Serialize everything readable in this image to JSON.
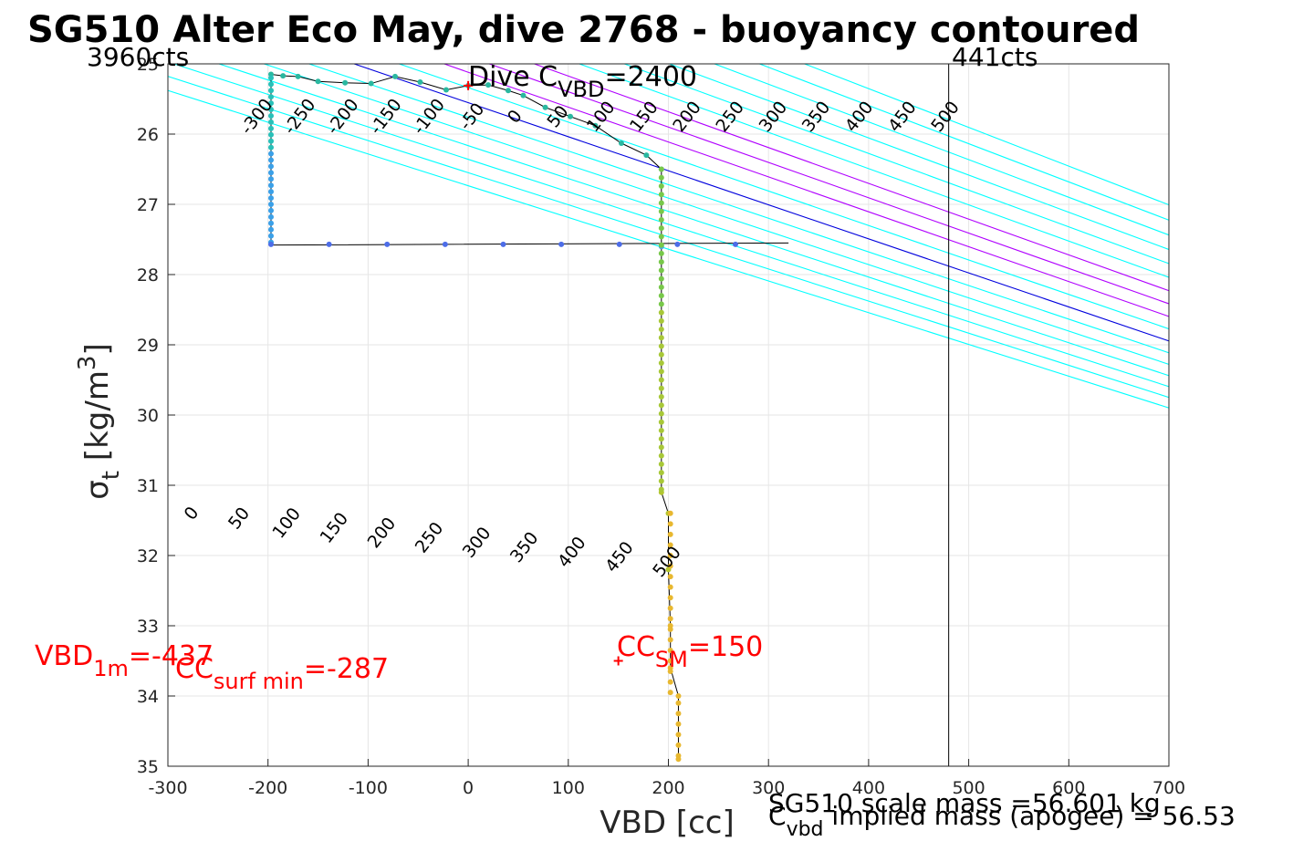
{
  "chart_data": {
    "type": "scatter",
    "title": "SG510 Alter Eco May, dive 2768 - buoyancy contoured",
    "xlabel": "VBD [cc]",
    "ylabel": {
      "sym": "σ",
      "sub": "t",
      "main": " [kg/m",
      "sup": "3",
      "end": "]"
    },
    "xlim": [
      -300,
      700
    ],
    "ylim": [
      25,
      35
    ],
    "y_reversed": true,
    "grid": true,
    "x_ticks": [
      -300,
      -200,
      -100,
      0,
      100,
      200,
      300,
      400,
      500,
      600,
      700
    ],
    "y_ticks": [
      25,
      26,
      27,
      28,
      29,
      30,
      31,
      32,
      33,
      34,
      35
    ],
    "x_tick_labels": [
      "-300",
      "-200",
      "-100",
      "0",
      "100",
      "200",
      "300",
      "400",
      "500",
      "600",
      "700"
    ],
    "y_tick_labels": [
      "25",
      "26",
      "27",
      "28",
      "29",
      "30",
      "31",
      "32",
      "33",
      "34",
      "35"
    ],
    "colors": {
      "contour": "#00ffff",
      "zero_contour": "#0000dd",
      "highlight_contour": "#b000ff",
      "annotation": "#ff0000",
      "profile_line": "#000000"
    },
    "contours_top": [
      {
        "value": -300,
        "label": "-300",
        "x0": -384,
        "slope": 221.3
      },
      {
        "value": -250,
        "label": "-250",
        "x0": -339,
        "slope": 218.8
      },
      {
        "value": -200,
        "label": "-200",
        "x0": -294,
        "slope": 216.3
      },
      {
        "value": -150,
        "label": "-150",
        "x0": -249,
        "slope": 213.8
      },
      {
        "value": -100,
        "label": "-100",
        "x0": -204,
        "slope": 211.3
      },
      {
        "value": -50,
        "label": "-50",
        "x0": -159,
        "slope": 208.8
      },
      {
        "value": 0,
        "label": "0",
        "x0": -114,
        "slope": 206.3
      },
      {
        "value": 50,
        "label": "50",
        "x0": -69,
        "slope": 203.8
      },
      {
        "value": 100,
        "label": "100",
        "x0": -24,
        "slope": 201.3
      },
      {
        "value": 150,
        "label": "150",
        "x0": 21,
        "slope": 198.8
      },
      {
        "value": 200,
        "label": "200",
        "x0": 66,
        "slope": 196.3
      },
      {
        "value": 250,
        "label": "250",
        "x0": 111,
        "slope": 193.8
      },
      {
        "value": 300,
        "label": "300",
        "x0": 156,
        "slope": 191.3
      },
      {
        "value": 350,
        "label": "350",
        "x0": 201,
        "slope": 188.8
      },
      {
        "value": 400,
        "label": "400",
        "x0": 246,
        "slope": 186.3
      },
      {
        "value": 450,
        "label": "450",
        "x0": 291,
        "slope": 183.8
      },
      {
        "value": 500,
        "label": "500",
        "x0": 336,
        "slope": 181.3
      }
    ],
    "contours_bottom": [
      {
        "value": 0,
        "label": "0"
      },
      {
        "value": 50,
        "label": "50"
      },
      {
        "value": 100,
        "label": "100"
      },
      {
        "value": 150,
        "label": "150"
      },
      {
        "value": 200,
        "label": "200"
      },
      {
        "value": 250,
        "label": "250"
      },
      {
        "value": 300,
        "label": "300"
      },
      {
        "value": 350,
        "label": "350"
      },
      {
        "value": 400,
        "label": "400"
      },
      {
        "value": 450,
        "label": "450"
      },
      {
        "value": 500,
        "label": "500"
      }
    ],
    "highlight_contours": [
      100,
      150,
      200
    ],
    "vertical_line_x": 480,
    "profile": [
      {
        "x": -197,
        "y": 25.15
      },
      {
        "x": -185,
        "y": 25.17
      },
      {
        "x": -170,
        "y": 25.18
      },
      {
        "x": -150,
        "y": 25.25
      },
      {
        "x": -123,
        "y": 25.27
      },
      {
        "x": -97,
        "y": 25.28
      },
      {
        "x": -73,
        "y": 25.18
      },
      {
        "x": -48,
        "y": 25.26
      },
      {
        "x": -22,
        "y": 25.37
      },
      {
        "x": 0,
        "y": 25.31
      },
      {
        "x": 20,
        "y": 25.3
      },
      {
        "x": 40,
        "y": 25.38
      },
      {
        "x": 55,
        "y": 25.45
      },
      {
        "x": 77,
        "y": 25.62
      },
      {
        "x": 102,
        "y": 25.75
      },
      {
        "x": 127,
        "y": 25.88
      },
      {
        "x": 153,
        "y": 26.13
      },
      {
        "x": 178,
        "y": 26.3
      },
      {
        "x": 193,
        "y": 26.5
      },
      {
        "x": 193,
        "y": 27.6
      },
      {
        "x": 193,
        "y": 31.1
      },
      {
        "x": 200,
        "y": 31.4
      },
      {
        "x": 200,
        "y": 32.2
      },
      {
        "x": 202,
        "y": 33.0
      },
      {
        "x": 202,
        "y": 33.6
      },
      {
        "x": 210,
        "y": 34.0
      },
      {
        "x": 210,
        "y": 34.9
      }
    ],
    "ascent_profile": [
      {
        "x": -197,
        "y": 25.15
      },
      {
        "x": -197,
        "y": 27.58
      },
      {
        "x": 320,
        "y": 27.55
      }
    ],
    "markers": [
      {
        "label": "dive_cvbd",
        "x": 0,
        "y": 25.31
      },
      {
        "label": "cc_sm",
        "x": 150,
        "y": 33.5
      }
    ],
    "annotations": {
      "counts_left": "3960cts",
      "counts_right": "441cts",
      "dive_c_pre": "Dive C",
      "dive_c_sub": "VBD",
      "dive_c_post": "=2400",
      "vbd1m_pre": "VBD",
      "vbd1m_sub": "1m",
      "vbd1m_post": "=-437",
      "ccsurf_pre": "CC",
      "ccsurf_sub": "surf min",
      "ccsurf_post": "=-287",
      "ccsm_pre": "CC",
      "ccsm_sub": "SM",
      "ccsm_post": "=150",
      "scale_mass": "SG510 scale mass =56.601 kg",
      "implied_pre": "C",
      "implied_sub": "vbd",
      "implied_post": " implied mass (apogee) = 56.53"
    }
  }
}
